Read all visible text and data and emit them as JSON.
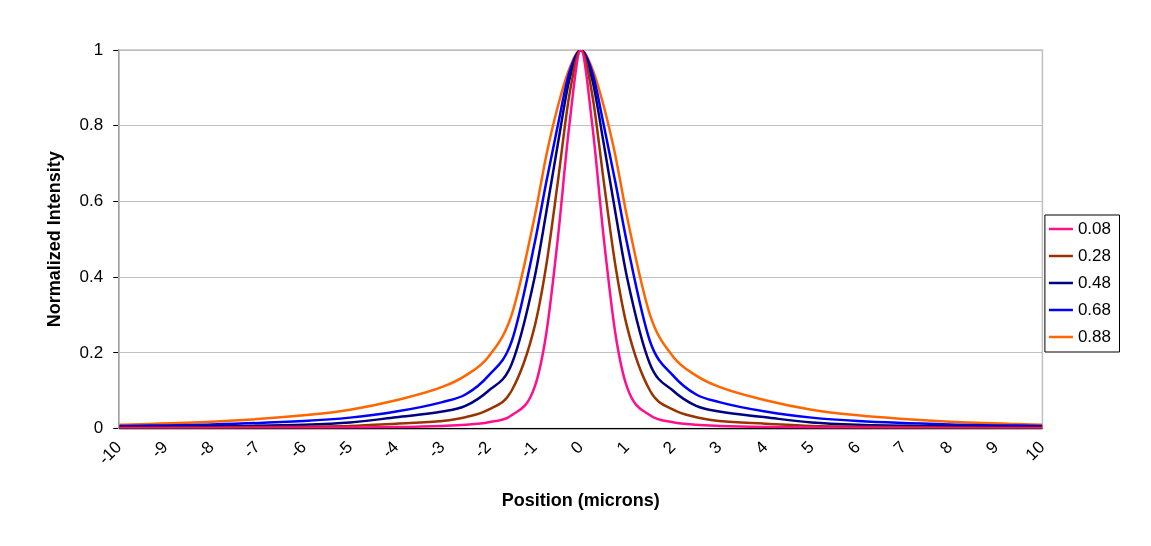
{
  "chart_data": {
    "type": "line",
    "xlabel": "Position (microns)",
    "ylabel": "Normalized Intensity",
    "x": [
      -10,
      -8,
      -6,
      -5,
      -4,
      -3,
      -2.5,
      -2,
      -1.5,
      -1,
      -0.75,
      -0.5,
      -0.25,
      0,
      0.25,
      0.5,
      0.75,
      1,
      1.5,
      2,
      2.5,
      3,
      4,
      5,
      6,
      8,
      10
    ],
    "series": [
      {
        "name": "0.08",
        "color": "#ff0f8c",
        "values": [
          0.001,
          0.001,
          0.002,
          0.003,
          0.004,
          0.007,
          0.01,
          0.017,
          0.035,
          0.11,
          0.25,
          0.5,
          0.8,
          1,
          0.8,
          0.5,
          0.25,
          0.11,
          0.035,
          0.017,
          0.01,
          0.007,
          0.004,
          0.003,
          0.002,
          0.001,
          0.001
        ]
      },
      {
        "name": "0.28",
        "color": "#993300",
        "values": [
          0.002,
          0.003,
          0.005,
          0.007,
          0.013,
          0.02,
          0.03,
          0.05,
          0.1,
          0.27,
          0.43,
          0.65,
          0.88,
          1,
          0.88,
          0.65,
          0.43,
          0.27,
          0.1,
          0.05,
          0.03,
          0.02,
          0.013,
          0.007,
          0.005,
          0.003,
          0.002
        ]
      },
      {
        "name": "0.48",
        "color": "#000080",
        "values": [
          0.004,
          0.006,
          0.01,
          0.016,
          0.03,
          0.045,
          0.06,
          0.1,
          0.17,
          0.4,
          0.57,
          0.75,
          0.92,
          1,
          0.92,
          0.75,
          0.57,
          0.4,
          0.17,
          0.1,
          0.06,
          0.045,
          0.03,
          0.016,
          0.01,
          0.006,
          0.004
        ]
      },
      {
        "name": "0.68",
        "color": "#0000ff",
        "values": [
          0.007,
          0.011,
          0.02,
          0.029,
          0.045,
          0.07,
          0.09,
          0.14,
          0.23,
          0.49,
          0.65,
          0.8,
          0.94,
          1,
          0.94,
          0.8,
          0.65,
          0.49,
          0.23,
          0.14,
          0.09,
          0.07,
          0.045,
          0.029,
          0.02,
          0.011,
          0.007
        ]
      },
      {
        "name": "0.88",
        "color": "#ff6600",
        "values": [
          0.01,
          0.018,
          0.035,
          0.05,
          0.075,
          0.11,
          0.14,
          0.19,
          0.3,
          0.56,
          0.72,
          0.85,
          0.95,
          1,
          0.95,
          0.85,
          0.72,
          0.56,
          0.3,
          0.19,
          0.14,
          0.11,
          0.075,
          0.05,
          0.035,
          0.018,
          0.01
        ]
      }
    ],
    "xlim": [
      -10,
      10
    ],
    "xticks": [
      -10,
      -9,
      -8,
      -7,
      -6,
      -5,
      -4,
      -3,
      -2,
      -1,
      0,
      1,
      2,
      3,
      4,
      5,
      6,
      7,
      8,
      9,
      10
    ],
    "ylim": [
      0,
      1
    ],
    "yticks": [
      0,
      0.2,
      0.4,
      0.6,
      0.8,
      1
    ],
    "grid": "y",
    "legend": "right",
    "marker": "none",
    "line_style": "solid"
  }
}
